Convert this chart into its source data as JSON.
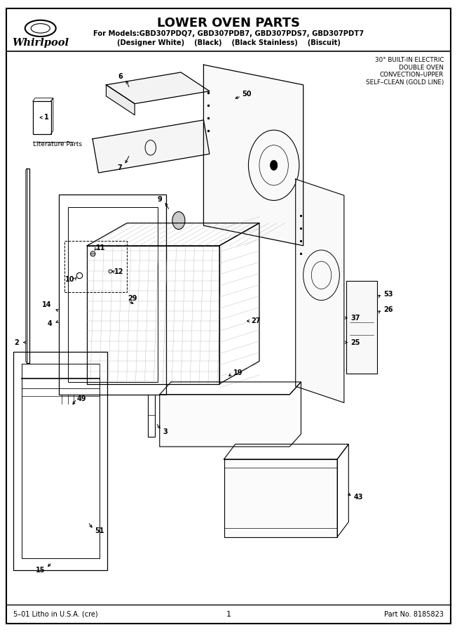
{
  "title": "LOWER OVEN PARTS",
  "subtitle_line1": "For Models:GBD307PDQ7, GBD307PDB7, GBD307PDS7, GBD307PDT7",
  "subtitle_line2": "(Designer White)    (Black)    (Black Stainless)    (Biscuit)",
  "top_right_text": "30° BUILT-IN ELECTRIC\nDOUBLE OVEN\nCONVECTION–UPPER\nSELF–CLEAN (GOLD LINE)",
  "footer_left": "5–01 Litho in U.S.A. (cre)",
  "footer_center": "1",
  "footer_right": "Part No. 8185823",
  "bg_color": "#ffffff",
  "text_color": "#000000"
}
